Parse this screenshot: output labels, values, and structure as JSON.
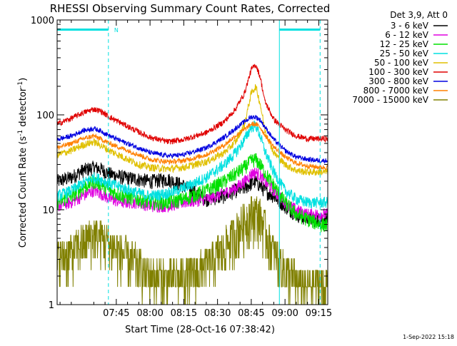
{
  "chart_data": {
    "type": "line",
    "title": "RHESSI Observing Summary Count Rates, Corrected",
    "xlabel": "Start Time (28-Oct-16 07:38:42)",
    "ylabel_main": "Corrected Count Rate (s",
    "ylabel_sup1": "-1",
    "ylabel_mid": " detector",
    "ylabel_sup2": "-1",
    "ylabel_end": ")",
    "yscale": "log",
    "ylim": [
      1,
      1000
    ],
    "xlim_minutes": [
      438.7,
      559.0
    ],
    "x_ticks": [
      {
        "minute": 465,
        "label": "07:45"
      },
      {
        "minute": 480,
        "label": "08:00"
      },
      {
        "minute": 495,
        "label": "08:15"
      },
      {
        "minute": 510,
        "label": "08:30"
      },
      {
        "minute": 525,
        "label": "08:45"
      },
      {
        "minute": 540,
        "label": "09:00"
      },
      {
        "minute": 555,
        "label": "09:15"
      }
    ],
    "y_ticks": [
      {
        "value": 1,
        "label": "1"
      },
      {
        "value": 10,
        "label": "10"
      },
      {
        "value": 100,
        "label": "100"
      },
      {
        "value": 1000,
        "label": "1000"
      }
    ],
    "legend_title": "Det 3,9, Att 0",
    "annotation_n": "N",
    "timestamp": "1-Sep-2022 15:18",
    "colors": {
      "axis": "#000000",
      "cyan_lines": "#00e0e0",
      "title": "#000000"
    },
    "night_bars": [
      {
        "start": 438.7,
        "end": 461.5
      },
      {
        "start": 537.5,
        "end": 555.6
      }
    ],
    "vlines_solid": [
      438.7,
      537.5
    ],
    "vlines_dashed": [
      461.5,
      555.6
    ],
    "series_time_points": [
      438.7,
      445,
      450,
      455,
      458,
      462,
      468,
      475,
      480,
      488,
      495,
      505,
      513,
      518,
      522,
      525,
      527,
      529,
      531,
      535,
      540,
      545,
      550,
      555.6
    ],
    "series": [
      {
        "name": "3 - 6 keV",
        "color": "#000000",
        "values": [
          20,
          22,
          26,
          28,
          27,
          24,
          22,
          21,
          20,
          21,
          18,
          13,
          14,
          16,
          17,
          19,
          20,
          18,
          16,
          14,
          11,
          9,
          8,
          8
        ],
        "noise": 0.18
      },
      {
        "name": "6 - 12 keV",
        "color": "#e000e0",
        "values": [
          11,
          12,
          14,
          16,
          15,
          13,
          12,
          12,
          11,
          11,
          12,
          13,
          15,
          17,
          20,
          24,
          25,
          23,
          20,
          16,
          12,
          10,
          9,
          9
        ],
        "noise": 0.15
      },
      {
        "name": "12 - 25 keV",
        "color": "#00e000",
        "values": [
          12,
          14,
          17,
          20,
          19,
          16,
          14,
          13,
          12,
          12,
          13,
          16,
          20,
          24,
          28,
          33,
          34,
          30,
          25,
          18,
          12,
          9,
          8,
          7
        ],
        "noise": 0.18
      },
      {
        "name": "25 - 50 keV",
        "color": "#00e0e0",
        "values": [
          14,
          16,
          19,
          22,
          21,
          19,
          17,
          15,
          14,
          15,
          17,
          22,
          30,
          40,
          55,
          75,
          78,
          60,
          42,
          25,
          16,
          13,
          12,
          12
        ],
        "noise": 0.14
      },
      {
        "name": "50 - 100 keV",
        "color": "#e0c000",
        "values": [
          38,
          42,
          48,
          52,
          48,
          42,
          36,
          30,
          28,
          27,
          28,
          32,
          40,
          52,
          80,
          170,
          200,
          130,
          70,
          40,
          30,
          26,
          25,
          25
        ],
        "noise": 0.09
      },
      {
        "name": "100 - 300 keV",
        "color": "#e00000",
        "values": [
          80,
          92,
          105,
          115,
          110,
          95,
          80,
          66,
          58,
          52,
          55,
          65,
          85,
          115,
          170,
          300,
          340,
          250,
          140,
          90,
          70,
          60,
          56,
          56
        ],
        "noise": 0.07
      },
      {
        "name": "300 - 800 keV",
        "color": "#0000e0",
        "values": [
          55,
          60,
          68,
          72,
          68,
          60,
          52,
          45,
          40,
          37,
          38,
          45,
          58,
          72,
          85,
          95,
          95,
          88,
          75,
          55,
          42,
          36,
          34,
          33
        ],
        "noise": 0.06
      },
      {
        "name": "800 - 7000 keV",
        "color": "#ff8000",
        "values": [
          45,
          50,
          56,
          60,
          56,
          50,
          44,
          38,
          34,
          32,
          33,
          38,
          48,
          60,
          70,
          80,
          80,
          74,
          62,
          46,
          36,
          31,
          29,
          28
        ],
        "noise": 0.06
      },
      {
        "name": "7000 - 15000 keV",
        "color": "#808000",
        "values": [
          3.0,
          3.6,
          4.6,
          5.5,
          5.2,
          4.4,
          3.5,
          2.6,
          2.0,
          1.9,
          2.0,
          2.6,
          4.0,
          5.8,
          7.8,
          9.2,
          9.6,
          8.4,
          6.4,
          3.6,
          2.3,
          1.7,
          1.6,
          1.6
        ],
        "noise": 0.35
      }
    ]
  }
}
